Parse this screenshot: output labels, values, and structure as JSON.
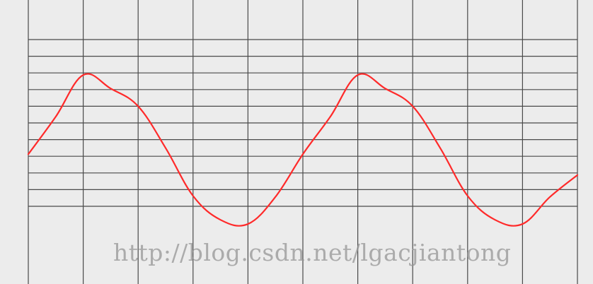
{
  "watermark": "http://blog.csdn.net/lgacjiantong",
  "colors": {
    "background": "#ececec",
    "grid": "#4a4a4a",
    "line": "#ff2a2a"
  },
  "chart_data": {
    "type": "line",
    "title": "",
    "xlabel": "",
    "ylabel": "",
    "xlim": [
      0,
      10
    ],
    "ylim": [
      0,
      16
    ],
    "grid": true,
    "vertical_grid_lines": 11,
    "horizontal_grid_lines": 11,
    "series": [
      {
        "x": [
          0,
          0.5,
          1,
          1.5,
          2,
          2.5,
          3,
          3.5,
          4,
          4.5,
          5,
          5.5,
          6,
          6.5,
          7,
          7.5,
          8,
          8.5,
          9,
          9.5,
          10
        ],
        "y": [
          5,
          8.6,
          12.6,
          11.3,
          9.6,
          5.6,
          1.0,
          -1.3,
          -1.7,
          0.9,
          5,
          8.6,
          12.6,
          11.3,
          9.6,
          5.6,
          1.0,
          -1.3,
          -1.7,
          0.9,
          3.0
        ]
      }
    ]
  }
}
